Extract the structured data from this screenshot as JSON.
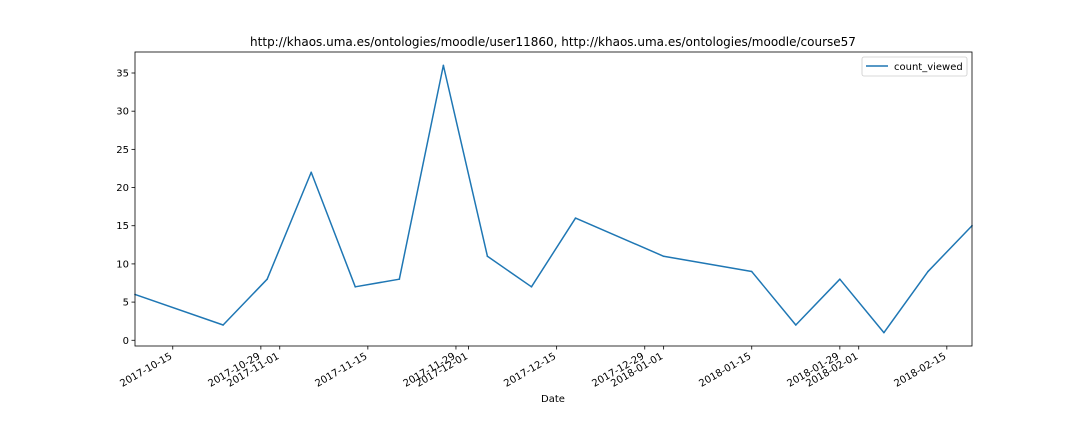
{
  "chart_data": {
    "type": "line",
    "title": "http://khaos.uma.es/ontologies/moodle/user11860, http://khaos.uma.es/ontologies/moodle/course57",
    "xlabel": "Date",
    "ylabel": "",
    "x_type": "date",
    "x": [
      "2017-10-09",
      "2017-10-23",
      "2017-10-30",
      "2017-11-06",
      "2017-11-13",
      "2017-11-20",
      "2017-11-27",
      "2017-12-04",
      "2017-12-11",
      "2017-12-18",
      "2018-01-01",
      "2018-01-15",
      "2018-01-22",
      "2018-01-29",
      "2018-02-05",
      "2018-02-12",
      "2018-02-19"
    ],
    "series": [
      {
        "name": "count_viewed",
        "color": "#1f77b4",
        "values": [
          6,
          2,
          8,
          22,
          7,
          8,
          36,
          11,
          7,
          16,
          11,
          9,
          2,
          8,
          1,
          9,
          15
        ]
      }
    ],
    "xlim": [
      "2017-10-09",
      "2018-02-19"
    ],
    "ylim": [
      -0.75,
      37.75
    ],
    "yticks": [
      0,
      5,
      10,
      15,
      20,
      25,
      30,
      35
    ],
    "xticks": [
      "2017-10-15",
      "2017-10-29",
      "2017-11-01",
      "2017-11-15",
      "2017-11-29",
      "2017-12-01",
      "2017-12-15",
      "2017-12-29",
      "2018-01-01",
      "2018-01-15",
      "2018-01-29",
      "2018-02-01",
      "2018-02-15"
    ],
    "grid": false,
    "legend": "top-right"
  }
}
